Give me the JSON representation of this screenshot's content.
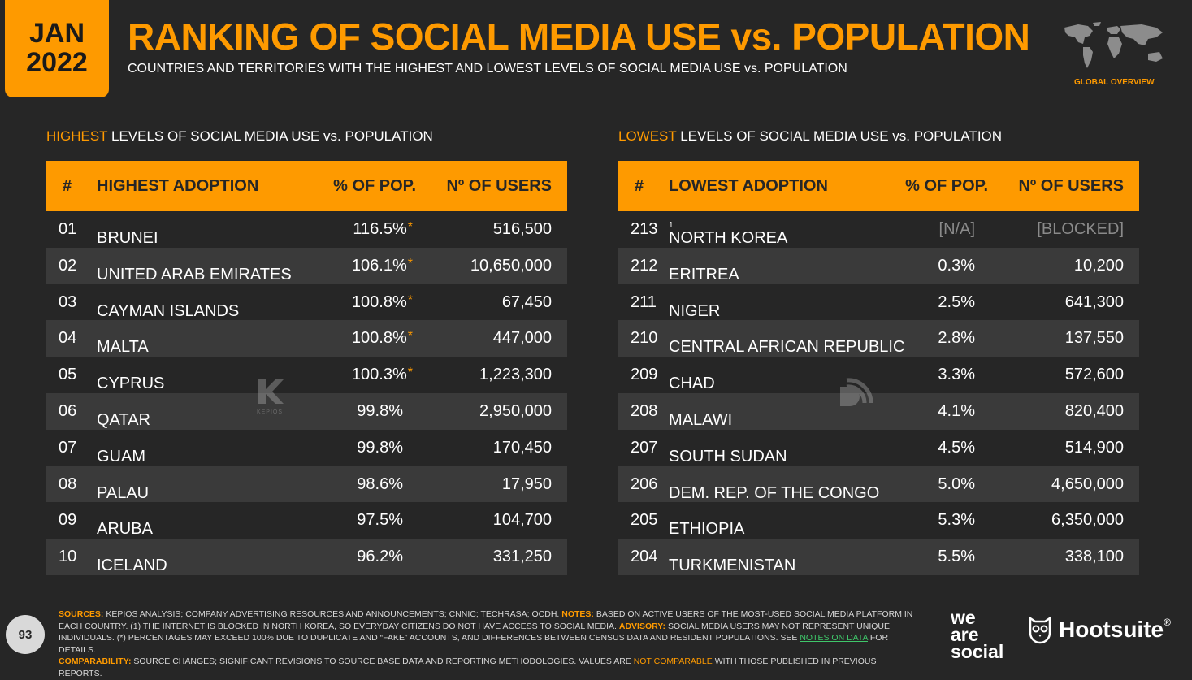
{
  "badge": {
    "month": "JAN",
    "year": "2022"
  },
  "title": "RANKING OF SOCIAL MEDIA USE vs. POPULATION",
  "subtitle": "COUNTRIES AND TERRITORIES WITH THE HIGHEST AND LOWEST LEVELS OF SOCIAL MEDIA USE vs. POPULATION",
  "global_label": "GLOBAL OVERVIEW",
  "accent_color": "#fe9a00",
  "left": {
    "label_hl": "HIGHEST",
    "label_rest": " LEVELS OF SOCIAL MEDIA USE vs. POPULATION",
    "headers": {
      "num": "#",
      "name": "HIGHEST ADOPTION",
      "pct": "% OF POP.",
      "users": "Nº OF USERS"
    },
    "rows": [
      {
        "num": "01",
        "name": "BRUNEI",
        "pct": "116.5%",
        "star": "*",
        "users": "516,500"
      },
      {
        "num": "02",
        "name": "UNITED ARAB EMIRATES",
        "pct": "106.1%",
        "star": "*",
        "users": "10,650,000"
      },
      {
        "num": "03",
        "name": "CAYMAN ISLANDS",
        "pct": "100.8%",
        "star": "*",
        "users": "67,450"
      },
      {
        "num": "04",
        "name": "MALTA",
        "pct": "100.8%",
        "star": "*",
        "users": "447,000"
      },
      {
        "num": "05",
        "name": "CYPRUS",
        "pct": "100.3%",
        "star": "*",
        "users": "1,223,300"
      },
      {
        "num": "06",
        "name": "QATAR",
        "pct": "99.8%",
        "star": "",
        "users": "2,950,000"
      },
      {
        "num": "07",
        "name": "GUAM",
        "pct": "99.8%",
        "star": "",
        "users": "170,450"
      },
      {
        "num": "08",
        "name": "PALAU",
        "pct": "98.6%",
        "star": "",
        "users": "17,950"
      },
      {
        "num": "09",
        "name": "ARUBA",
        "pct": "97.5%",
        "star": "",
        "users": "104,700"
      },
      {
        "num": "10",
        "name": "ICELAND",
        "pct": "96.2%",
        "star": "",
        "users": "331,250"
      }
    ]
  },
  "right": {
    "label_hl": "LOWEST",
    "label_rest": " LEVELS OF SOCIAL MEDIA USE vs. POPULATION",
    "headers": {
      "num": "#",
      "name": "LOWEST ADOPTION",
      "pct": "% OF POP.",
      "users": "Nº OF USERS"
    },
    "rows": [
      {
        "num": "213",
        "name": "NORTH KOREA",
        "sup": "1",
        "pct": "[N/A]",
        "users": "[BLOCKED]",
        "muted": true
      },
      {
        "num": "212",
        "name": "ERITREA",
        "pct": "0.3%",
        "users": "10,200"
      },
      {
        "num": "211",
        "name": "NIGER",
        "pct": "2.5%",
        "users": "641,300"
      },
      {
        "num": "210",
        "name": "CENTRAL AFRICAN REPUBLIC",
        "pct": "2.8%",
        "users": "137,550"
      },
      {
        "num": "209",
        "name": "CHAD",
        "pct": "3.3%",
        "users": "572,600"
      },
      {
        "num": "208",
        "name": "MALAWI",
        "pct": "4.1%",
        "users": "820,400"
      },
      {
        "num": "207",
        "name": "SOUTH SUDAN",
        "pct": "4.5%",
        "users": "514,900"
      },
      {
        "num": "206",
        "name": "DEM. REP. OF THE CONGO",
        "pct": "5.0%",
        "users": "4,650,000"
      },
      {
        "num": "205",
        "name": "ETHIOPIA",
        "pct": "5.3%",
        "users": "6,350,000"
      },
      {
        "num": "204",
        "name": "TURKMENISTAN",
        "pct": "5.5%",
        "users": "338,100"
      }
    ]
  },
  "watermark_text": "KEPIOS",
  "footer": {
    "sources_k": "SOURCES:",
    "sources": " KEPIOS ANALYSIS; COMPANY ADVERTISING RESOURCES AND ANNOUNCEMENTS; CNNIC; TECHRASA; OCDH. ",
    "notes_k": "NOTES:",
    "notes": " BASED ON ACTIVE USERS OF THE MOST-USED SOCIAL MEDIA PLATFORM IN EACH COUNTRY. (1) THE INTERNET IS BLOCKED IN NORTH KOREA, SO EVERYDAY CITIZENS DO NOT HAVE ACCESS TO SOCIAL MEDIA. ",
    "advisory_k": "ADVISORY:",
    "advisory": " SOCIAL MEDIA USERS MAY NOT REPRESENT UNIQUE INDIVIDUALS. (*) PERCENTAGES MAY EXCEED 100% DUE TO DUPLICATE AND “FAKE” ACCOUNTS, AND DIFFERENCES BETWEEN CENSUS DATA AND RESIDENT POPULATIONS. SEE ",
    "notes_link": "NOTES ON DATA",
    "advisory_end": " FOR DETAILS. ",
    "comp_k": "COMPARABILITY:",
    "comp": " SOURCE CHANGES; SIGNIFICANT REVISIONS TO SOURCE BASE DATA AND REPORTING METHODOLOGIES. VALUES ARE ",
    "not_comparable": "NOT COMPARABLE",
    "comp_end": " WITH THOSE PUBLISHED IN PREVIOUS REPORTS."
  },
  "page_number": "93",
  "brand_was": [
    "we",
    "are",
    "social"
  ],
  "brand_hoot": "Hootsuite",
  "brand_hoot_mark": "®"
}
